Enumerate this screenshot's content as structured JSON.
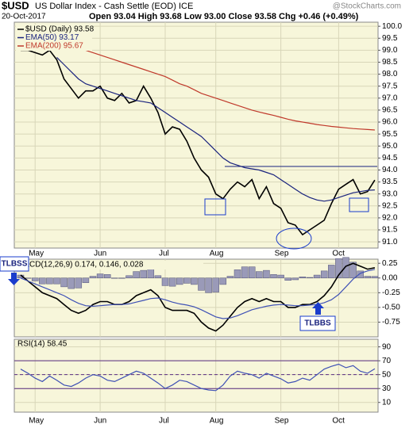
{
  "chart_data": [
    {
      "type": "line",
      "symbol": "$USD",
      "title": "US Dollar Index - Cash Settle (EOD) ICE",
      "watermark": "@StockCharts.com",
      "date": "20-Oct-2017",
      "quote": "Open 93.04 High 93.68 Low 93.00 Close 93.58 Chg +0.46 (+0.49%)",
      "categories": [
        null,
        null,
        "May",
        null,
        null,
        null,
        null,
        null,
        null,
        null,
        null,
        "Jun",
        null,
        null,
        null,
        null,
        null,
        null,
        null,
        null,
        "Jul",
        null,
        null,
        null,
        null,
        null,
        null,
        "Aug",
        null,
        null,
        null,
        null,
        null,
        null,
        null,
        null,
        "Sep",
        null,
        null,
        null,
        null,
        null,
        null,
        null,
        "Oct",
        null,
        null,
        null,
        null,
        null
      ],
      "ylim": [
        90.74,
        100.17
      ],
      "yticks": [
        {
          "value": 91,
          "label": "91.0"
        },
        91.5,
        {
          "value": 92,
          "label": "92.0"
        },
        92.5,
        {
          "value": 93,
          "label": "93.0"
        },
        93.5,
        {
          "value": 94,
          "label": "94.0"
        },
        94.5,
        {
          "value": 95,
          "label": "95.0"
        },
        95.5,
        {
          "value": 96,
          "label": "96.0"
        },
        96.5,
        {
          "value": 97,
          "label": "97.0"
        },
        97.5,
        {
          "value": 98,
          "label": "98.0"
        },
        98.5,
        {
          "value": 99,
          "label": "99.0"
        },
        99.5,
        {
          "value": 100,
          "label": "100.0"
        }
      ],
      "grid": true,
      "series": [
        {
          "name": "$USD (Daily) 93.58",
          "color": "#000000",
          "values": [
            99.0,
            99.0,
            98.9,
            98.8,
            99.0,
            98.6,
            97.8,
            97.4,
            97.0,
            97.3,
            97.3,
            97.5,
            97.0,
            96.9,
            97.2,
            96.8,
            96.9,
            97.5,
            97.0,
            96.4,
            95.5,
            95.8,
            95.7,
            95.2,
            94.5,
            94.0,
            93.7,
            93.0,
            92.8,
            93.2,
            93.5,
            93.3,
            93.6,
            92.8,
            93.3,
            92.6,
            92.4,
            91.8,
            91.7,
            91.3,
            91.5,
            91.7,
            91.9,
            92.6,
            93.2,
            93.4,
            93.6,
            93.0,
            93.1,
            93.58
          ]
        },
        {
          "name": "EMA(50) 93.17",
          "color": "#1a237e",
          "values": [
            null,
            null,
            null,
            null,
            null,
            98.7,
            98.4,
            98.1,
            97.8,
            97.6,
            97.5,
            97.4,
            97.3,
            97.2,
            97.1,
            97.0,
            96.9,
            96.85,
            96.8,
            96.6,
            96.4,
            96.2,
            96.0,
            95.8,
            95.6,
            95.4,
            95.1,
            94.8,
            94.5,
            94.3,
            94.2,
            94.1,
            94.05,
            94.0,
            93.9,
            93.8,
            93.6,
            93.4,
            93.2,
            93.0,
            92.85,
            92.75,
            92.7,
            92.75,
            92.85,
            92.95,
            93.05,
            93.1,
            93.15,
            93.17
          ]
        },
        {
          "name": "EMA(200) 95.67",
          "color": "#c0392b",
          "values": [
            null,
            null,
            null,
            null,
            null,
            null,
            null,
            null,
            99.1,
            99.0,
            98.9,
            98.8,
            98.7,
            98.6,
            98.5,
            98.4,
            98.3,
            98.2,
            98.1,
            98.0,
            97.9,
            97.75,
            97.6,
            97.5,
            97.35,
            97.2,
            97.1,
            97.0,
            96.9,
            96.8,
            96.7,
            96.6,
            96.5,
            96.42,
            96.35,
            96.28,
            96.2,
            96.12,
            96.05,
            96.0,
            95.95,
            95.9,
            95.86,
            95.82,
            95.79,
            95.76,
            95.73,
            95.71,
            95.69,
            95.67
          ]
        }
      ]
    },
    {
      "type": "line",
      "title": "MACD(12,26,9) 0.174, 0.146, 0.028",
      "annotations": [
        "TLBSS",
        "TLBBS"
      ],
      "ylim": [
        -1.0,
        0.32
      ],
      "yticks": [
        0.25,
        {
          "value": 0,
          "label": "0.00"
        },
        -0.25,
        {
          "value": -0.5,
          "label": "-0.50"
        },
        -0.75
      ],
      "series": [
        {
          "name": "Histogram",
          "style": "histogram",
          "color": "#9a9ab8",
          "values": [
            0.05,
            0,
            -0.05,
            -0.1,
            -0.1,
            -0.1,
            -0.15,
            -0.18,
            -0.17,
            -0.08,
            0.03,
            0.07,
            0.06,
            0,
            0,
            0.04,
            0.11,
            0.13,
            0.15,
            0.04,
            -0.13,
            -0.14,
            -0.11,
            -0.09,
            -0.11,
            -0.21,
            -0.25,
            -0.24,
            -0.11,
            0.03,
            0.14,
            0.19,
            0.19,
            0.11,
            0.13,
            0.06,
            0.05,
            -0.04,
            -0.03,
            0.02,
            0.01,
            0.05,
            0.12,
            0.22,
            0.33,
            0.35,
            0.27,
            0.12,
            0.03,
            0.028
          ]
        },
        {
          "name": "MACD",
          "color": "#000000",
          "values": [
            0.05,
            -0.05,
            -0.15,
            -0.25,
            -0.3,
            -0.35,
            -0.45,
            -0.55,
            -0.6,
            -0.55,
            -0.45,
            -0.4,
            -0.4,
            -0.45,
            -0.45,
            -0.4,
            -0.3,
            -0.25,
            -0.2,
            -0.3,
            -0.5,
            -0.55,
            -0.55,
            -0.55,
            -0.6,
            -0.75,
            -0.85,
            -0.9,
            -0.8,
            -0.65,
            -0.5,
            -0.4,
            -0.35,
            -0.4,
            -0.35,
            -0.4,
            -0.4,
            -0.5,
            -0.5,
            -0.45,
            -0.45,
            -0.4,
            -0.3,
            -0.15,
            0.05,
            0.2,
            0.25,
            0.2,
            0.15,
            0.174
          ]
        },
        {
          "name": "Signal",
          "color": "#3f51b5",
          "values": [
            0,
            -0.05,
            -0.1,
            -0.15,
            -0.2,
            -0.25,
            -0.3,
            -0.37,
            -0.43,
            -0.47,
            -0.48,
            -0.47,
            -0.46,
            -0.45,
            -0.45,
            -0.44,
            -0.41,
            -0.38,
            -0.35,
            -0.34,
            -0.37,
            -0.41,
            -0.44,
            -0.46,
            -0.49,
            -0.54,
            -0.6,
            -0.66,
            -0.69,
            -0.68,
            -0.64,
            -0.59,
            -0.54,
            -0.51,
            -0.48,
            -0.46,
            -0.45,
            -0.46,
            -0.47,
            -0.47,
            -0.46,
            -0.45,
            -0.42,
            -0.37,
            -0.28,
            -0.15,
            -0.02,
            0.08,
            0.12,
            0.146
          ]
        }
      ]
    },
    {
      "type": "line",
      "title": "RSI(14) 58.45",
      "ylim": [
        -4,
        101
      ],
      "yticks": [
        90,
        70,
        50,
        30,
        10
      ],
      "levels": [
        70,
        50,
        30
      ],
      "series": [
        {
          "name": "RSI",
          "color": "#3f51b5",
          "values": [
            58,
            52,
            45,
            40,
            48,
            42,
            35,
            33,
            38,
            45,
            50,
            48,
            42,
            40,
            45,
            50,
            55,
            52,
            45,
            38,
            30,
            35,
            42,
            40,
            35,
            30,
            28,
            27,
            35,
            48,
            55,
            52,
            50,
            45,
            52,
            48,
            44,
            38,
            40,
            45,
            42,
            50,
            58,
            62,
            65,
            60,
            63,
            55,
            52,
            58.45
          ]
        }
      ]
    }
  ]
}
